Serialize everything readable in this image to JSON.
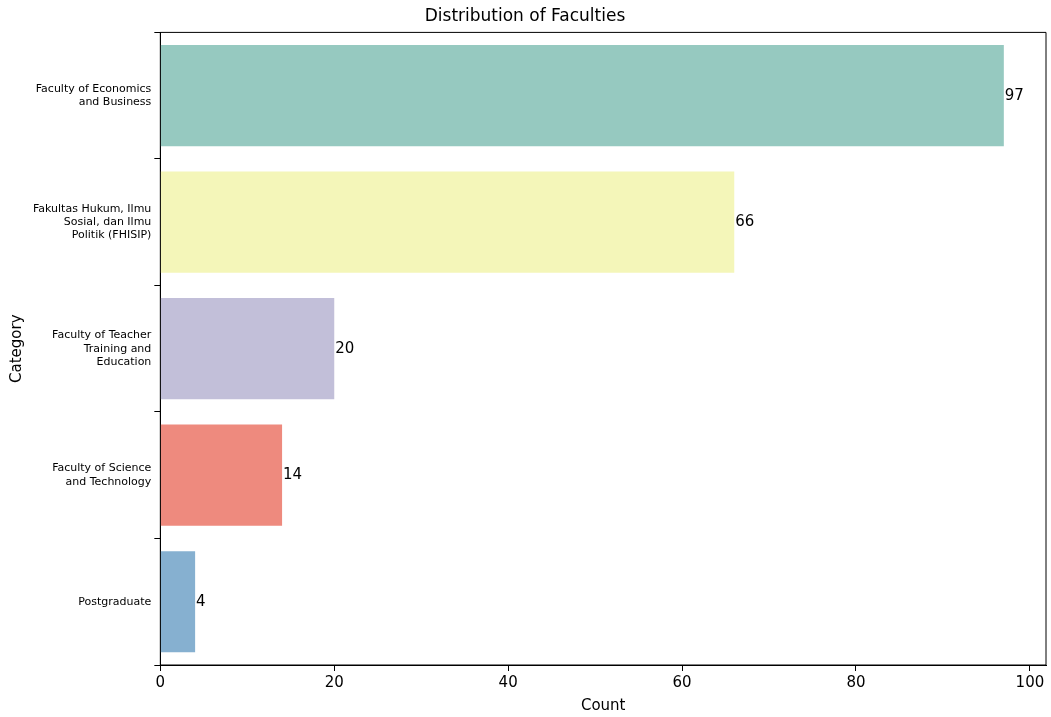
{
  "chart_data": {
    "type": "bar",
    "orientation": "horizontal",
    "title": "Distribution of Faculties",
    "xlabel": "Count",
    "ylabel": "Category",
    "categories": [
      "Faculty of Economics\nand Business",
      "Fakultas Hukum, Ilmu\nSosial, dan Ilmu\nPolitik (FHISIP)",
      "Faculty of Teacher\nTraining and\nEducation",
      "Faculty of Science\nand Technology",
      "Postgraduate"
    ],
    "values": [
      97,
      66,
      20,
      14,
      4
    ],
    "colors": [
      "#96c9c0",
      "#f4f6b9",
      "#c2bfd9",
      "#ee8a7e",
      "#86b0d0"
    ],
    "xlim": [
      0,
      101.85
    ],
    "xticks": [
      0,
      20,
      40,
      60,
      80,
      100
    ],
    "data_labels": true,
    "grid": false,
    "legend": false
  }
}
